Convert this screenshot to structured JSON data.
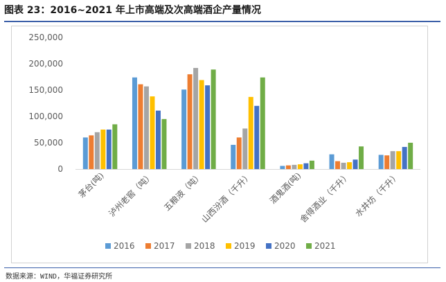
{
  "title": "图表 23：2016~2021 年上市高端及次高端酒企产量情况",
  "source": "数据来源：WIND，华福证券研究所",
  "chart_data": {
    "type": "bar",
    "categories": [
      "茅台(吨)",
      "泸州老窖（吨）",
      "五粮液（吨）",
      "山西汾酒（千升）",
      "酒鬼酒(吨)",
      "舍得酒业（千升）",
      "水井坊（千升）"
    ],
    "series": [
      {
        "name": "2016",
        "color": "#5b9bd5",
        "values": [
          60000,
          174000,
          151000,
          46000,
          6000,
          28000,
          27000
        ]
      },
      {
        "name": "2017",
        "color": "#ed7d31",
        "values": [
          64000,
          161000,
          180000,
          60000,
          7000,
          15000,
          26000
        ]
      },
      {
        "name": "2018",
        "color": "#a5a5a5",
        "values": [
          70000,
          157000,
          192000,
          77000,
          8000,
          12000,
          34000
        ]
      },
      {
        "name": "2019",
        "color": "#ffc000",
        "values": [
          75000,
          138000,
          169000,
          137000,
          9000,
          13000,
          34000
        ]
      },
      {
        "name": "2020",
        "color": "#4472c4",
        "values": [
          75000,
          111000,
          159000,
          120000,
          11000,
          18000,
          42000
        ]
      },
      {
        "name": "2021",
        "color": "#70ad47",
        "values": [
          85000,
          95000,
          189000,
          174000,
          16000,
          43000,
          50000
        ]
      }
    ],
    "y_ticks": [
      "0",
      "50,000",
      "100,000",
      "150,000",
      "200,000",
      "250,000"
    ],
    "ylim": [
      0,
      250000
    ],
    "grid": false,
    "legend": "bottom"
  }
}
